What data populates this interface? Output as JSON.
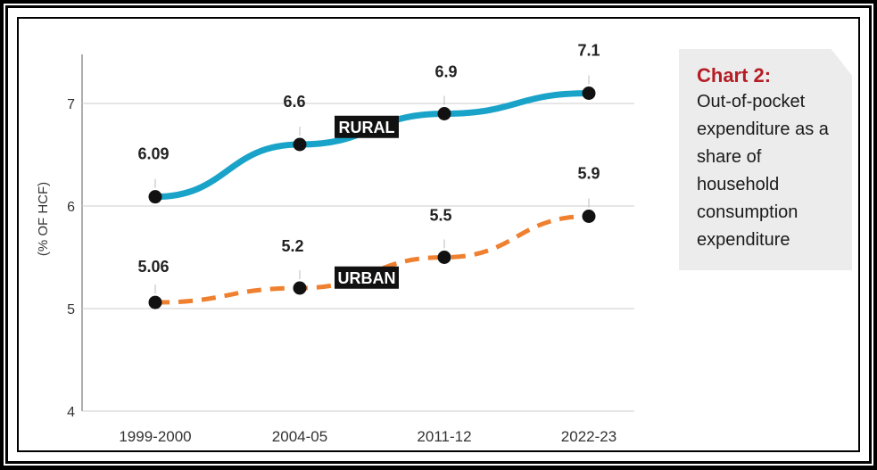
{
  "chart_data": {
    "type": "line",
    "categories": [
      "1999-2000",
      "2004-05",
      "2011-12",
      "2022-23"
    ],
    "series": [
      {
        "name": "RURAL",
        "values": [
          6.09,
          6.6,
          6.9,
          7.1
        ],
        "labels": [
          "6.09",
          "6.6",
          "6.9",
          "7.1"
        ],
        "color": "#1aa3c9",
        "style": "solid"
      },
      {
        "name": "URBAN",
        "values": [
          5.06,
          5.2,
          5.5,
          5.9
        ],
        "labels": [
          "5.06",
          "5.2",
          "5.5",
          "5.9"
        ],
        "color": "#ef8030",
        "style": "dashed"
      }
    ],
    "ylabel": "(% OF HCF)",
    "yticks": [
      4,
      5,
      6,
      7
    ],
    "ylim": [
      4,
      7.5
    ]
  },
  "caption": {
    "title": "Chart 2:",
    "text": "Out-of-pocket expenditure as a share of household consumption expenditure"
  },
  "colors": {
    "caption_title": "#b51d24",
    "grid": "#cccccc"
  }
}
